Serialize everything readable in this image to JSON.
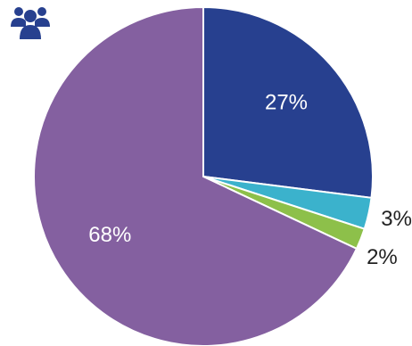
{
  "header": {
    "icon": "people-group-icon"
  },
  "chart_data": {
    "type": "pie",
    "start_angle_deg": 0,
    "direction": "clockwise",
    "slices": [
      {
        "label": "27%",
        "value": 27,
        "color": "#27408f",
        "label_color": "#ffffff",
        "label_placement": "inside"
      },
      {
        "label": "3%",
        "value": 3,
        "color": "#3bb2cc",
        "label_color": "#222222",
        "label_placement": "outside"
      },
      {
        "label": "2%",
        "value": 2,
        "color": "#8dc04a",
        "label_color": "#222222",
        "label_placement": "outside"
      },
      {
        "label": "68%",
        "value": 68,
        "color": "#8460a0",
        "label_color": "#ffffff",
        "label_placement": "inside"
      }
    ]
  }
}
